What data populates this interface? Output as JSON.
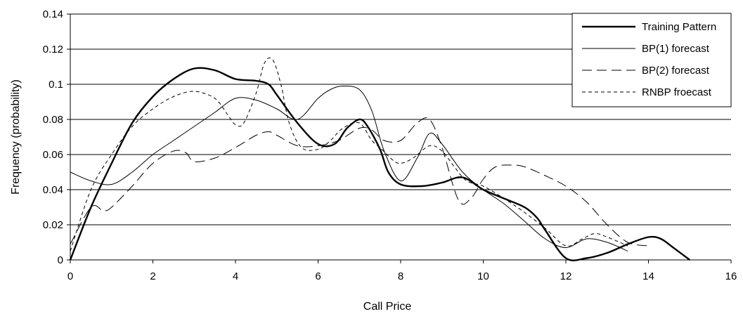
{
  "chart_data": {
    "type": "line",
    "xlabel": "Call Price",
    "ylabel": "Frequency (probability)",
    "xlim": [
      0,
      16
    ],
    "ylim": [
      0,
      0.14
    ],
    "x_ticks": [
      "0",
      "2",
      "4",
      "6",
      "8",
      "10",
      "12",
      "14",
      "16"
    ],
    "y_ticks": [
      "0",
      "0.02",
      "0.04",
      "0.06",
      "0.08",
      "0.1",
      "0.12",
      "0.14"
    ],
    "grid": "horizontal",
    "legend_position": "top-right",
    "series": [
      {
        "name": "Training Pattern",
        "style": "solid-thick",
        "x": [
          0,
          0.5,
          1.0,
          1.5,
          2.0,
          2.5,
          3.0,
          3.5,
          4.0,
          4.5,
          4.8,
          5.0,
          5.5,
          6.0,
          6.4,
          6.7,
          7.0,
          7.2,
          7.5,
          7.7,
          8.0,
          8.5,
          9.0,
          9.5,
          10.0,
          10.5,
          11.0,
          11.3,
          11.5,
          12.0,
          12.5,
          13.0,
          13.5,
          14.0,
          14.3,
          14.6,
          15.0
        ],
        "y": [
          0,
          0.03,
          0.055,
          0.078,
          0.093,
          0.103,
          0.109,
          0.108,
          0.103,
          0.102,
          0.1,
          0.094,
          0.078,
          0.066,
          0.066,
          0.075,
          0.08,
          0.076,
          0.063,
          0.05,
          0.043,
          0.042,
          0.044,
          0.047,
          0.04,
          0.035,
          0.03,
          0.024,
          0.017,
          0.001,
          0.001,
          0.004,
          0.009,
          0.013,
          0.012,
          0.007,
          0
        ]
      },
      {
        "name": "BP(1) forecast",
        "style": "solid-thin",
        "x": [
          0,
          0.5,
          1.0,
          1.5,
          2.0,
          2.5,
          3.0,
          3.5,
          4.0,
          4.5,
          5.0,
          5.5,
          6.0,
          6.3,
          6.6,
          7.0,
          7.3,
          7.6,
          8.0,
          8.4,
          8.7,
          9.0,
          9.5,
          10.0,
          10.5,
          11.0,
          11.5,
          12.0,
          12.5,
          13.0,
          13.5
        ],
        "y": [
          0.05,
          0.045,
          0.043,
          0.05,
          0.06,
          0.068,
          0.076,
          0.084,
          0.092,
          0.091,
          0.086,
          0.08,
          0.092,
          0.097,
          0.099,
          0.097,
          0.085,
          0.062,
          0.045,
          0.058,
          0.072,
          0.066,
          0.05,
          0.04,
          0.032,
          0.022,
          0.012,
          0.007,
          0.012,
          0.01,
          0.005
        ]
      },
      {
        "name": "BP(2) forecast",
        "style": "long-dash",
        "x": [
          0,
          0.5,
          0.8,
          1.0,
          1.5,
          2.0,
          2.5,
          2.8,
          3.0,
          3.5,
          4.0,
          4.5,
          4.8,
          5.0,
          5.5,
          6.0,
          6.5,
          7.0,
          7.3,
          7.6,
          8.0,
          8.4,
          8.7,
          9.0,
          9.4,
          9.7,
          10.0,
          10.3,
          10.7,
          11.0,
          11.5,
          12.0,
          12.5,
          13.0,
          13.5,
          14.0
        ],
        "y": [
          0.009,
          0.03,
          0.028,
          0.03,
          0.042,
          0.055,
          0.062,
          0.061,
          0.056,
          0.058,
          0.064,
          0.071,
          0.073,
          0.071,
          0.065,
          0.065,
          0.068,
          0.075,
          0.074,
          0.068,
          0.068,
          0.078,
          0.08,
          0.064,
          0.034,
          0.035,
          0.046,
          0.053,
          0.054,
          0.053,
          0.048,
          0.042,
          0.033,
          0.02,
          0.01,
          0.008
        ]
      },
      {
        "name": "RNBP froecast",
        "style": "short-dash",
        "x": [
          0,
          0.5,
          1.0,
          1.5,
          2.0,
          2.5,
          3.0,
          3.5,
          3.8,
          4.0,
          4.2,
          4.5,
          4.7,
          4.9,
          5.1,
          5.3,
          5.6,
          6.0,
          6.3,
          6.6,
          7.0,
          7.3,
          7.5,
          7.8,
          8.0,
          8.3,
          8.7,
          9.0,
          9.3,
          9.6,
          10.0,
          10.5,
          11.0,
          11.5,
          12.0,
          12.4,
          12.7,
          13.0,
          13.5
        ],
        "y": [
          0.005,
          0.04,
          0.06,
          0.076,
          0.086,
          0.093,
          0.096,
          0.092,
          0.083,
          0.077,
          0.078,
          0.095,
          0.112,
          0.114,
          0.1,
          0.078,
          0.064,
          0.063,
          0.068,
          0.075,
          0.078,
          0.068,
          0.064,
          0.057,
          0.055,
          0.058,
          0.065,
          0.062,
          0.053,
          0.045,
          0.042,
          0.035,
          0.027,
          0.018,
          0.008,
          0.012,
          0.015,
          0.013,
          0.008
        ]
      }
    ]
  }
}
